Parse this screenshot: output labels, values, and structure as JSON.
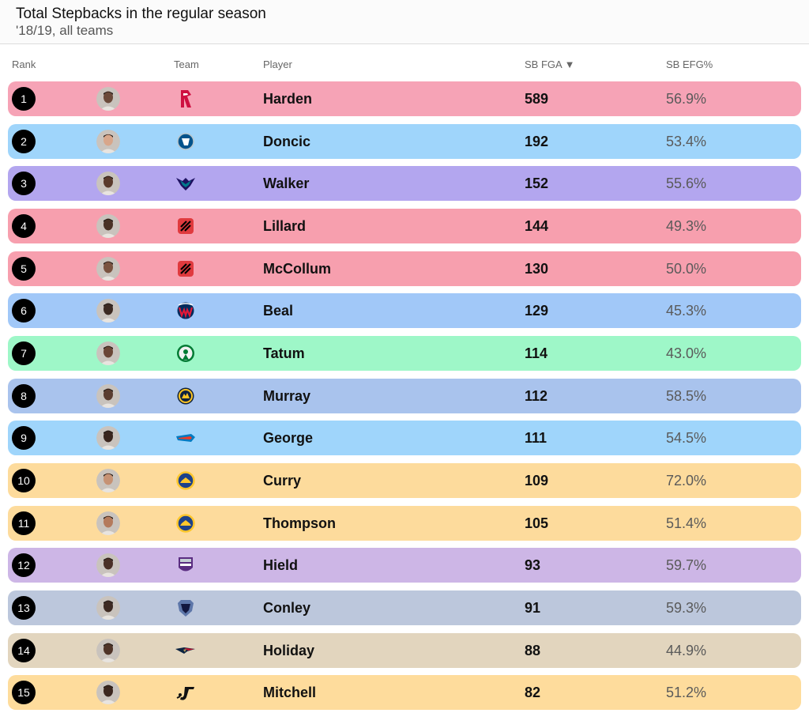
{
  "header": {
    "title": "Total Stepbacks in the regular season",
    "subtitle": "'18/19, all teams"
  },
  "columns": {
    "rank": "Rank",
    "team": "Team",
    "player": "Player",
    "fga": "SB FGA ▼",
    "efg": "SB EFG%"
  },
  "chart_data": {
    "type": "table",
    "title": "Total Stepbacks in the regular season",
    "subtitle": "'18/19, all teams",
    "columns": [
      "Rank",
      "Team",
      "Player",
      "SB FGA",
      "SB EFG%"
    ],
    "sort": {
      "column": "SB FGA",
      "order": "descending"
    },
    "rows": [
      {
        "rank": "1",
        "team_icon": "rockets-logo-icon",
        "player": "Harden",
        "fga": "589",
        "efg": "56.9%",
        "color": "#f6a3b6"
      },
      {
        "rank": "2",
        "team_icon": "mavericks-logo-icon",
        "player": "Doncic",
        "fga": "192",
        "efg": "53.4%",
        "color": "#9fd5fb"
      },
      {
        "rank": "3",
        "team_icon": "hornets-logo-icon",
        "player": "Walker",
        "fga": "152",
        "efg": "55.6%",
        "color": "#b3a6ef"
      },
      {
        "rank": "4",
        "team_icon": "blazers-logo-icon",
        "player": "Lillard",
        "fga": "144",
        "efg": "49.3%",
        "color": "#f79fae"
      },
      {
        "rank": "5",
        "team_icon": "blazers-logo-icon",
        "player": "McCollum",
        "fga": "130",
        "efg": "50.0%",
        "color": "#f79fae"
      },
      {
        "rank": "6",
        "team_icon": "wizards-logo-icon",
        "player": "Beal",
        "fga": "129",
        "efg": "45.3%",
        "color": "#a1c8f8"
      },
      {
        "rank": "7",
        "team_icon": "celtics-logo-icon",
        "player": "Tatum",
        "fga": "114",
        "efg": "43.0%",
        "color": "#9ef7c8"
      },
      {
        "rank": "8",
        "team_icon": "nuggets-logo-icon",
        "player": "Murray",
        "fga": "112",
        "efg": "58.5%",
        "color": "#a9c3ed"
      },
      {
        "rank": "9",
        "team_icon": "thunder-logo-icon",
        "player": "George",
        "fga": "111",
        "efg": "54.5%",
        "color": "#9fd5fb"
      },
      {
        "rank": "10",
        "team_icon": "warriors-logo-icon",
        "player": "Curry",
        "fga": "109",
        "efg": "72.0%",
        "color": "#fddb9c"
      },
      {
        "rank": "11",
        "team_icon": "warriors-logo-icon",
        "player": "Thompson",
        "fga": "105",
        "efg": "51.4%",
        "color": "#fddb9c"
      },
      {
        "rank": "12",
        "team_icon": "kings-logo-icon",
        "player": "Hield",
        "fga": "93",
        "efg": "59.7%",
        "color": "#cdb6e6"
      },
      {
        "rank": "13",
        "team_icon": "grizzlies-logo-icon",
        "player": "Conley",
        "fga": "91",
        "efg": "59.3%",
        "color": "#bcc7dc"
      },
      {
        "rank": "14",
        "team_icon": "pelicans-logo-icon",
        "player": "Holiday",
        "fga": "88",
        "efg": "44.9%",
        "color": "#e2d5be"
      },
      {
        "rank": "15",
        "team_icon": "jazz-logo-icon",
        "player": "Mitchell",
        "fga": "82",
        "efg": "51.2%",
        "color": "#fedc9c"
      }
    ]
  }
}
